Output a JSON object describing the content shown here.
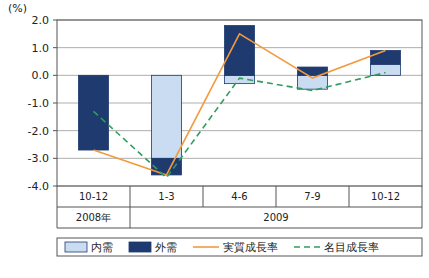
{
  "chart_data": {
    "type": "bar",
    "stacked": true,
    "grid": true,
    "legend": "bottom",
    "y_label": "(%)",
    "categories": [
      "10-12",
      "1-3",
      "4-6",
      "7-9",
      "10-12"
    ],
    "category_groups": [
      {
        "label": "2008年",
        "count": 1
      },
      {
        "label": "2009",
        "count": 4
      }
    ],
    "ylim": [
      -4.0,
      2.0
    ],
    "yticks": [
      {
        "value": 2,
        "label": "2.0"
      },
      {
        "value": 1,
        "label": "1.0"
      },
      {
        "value": 0,
        "label": "0.0"
      },
      {
        "value": -1,
        "label": "-1.0"
      },
      {
        "value": -2,
        "label": "-2.0"
      },
      {
        "value": -3,
        "label": "-3.0"
      },
      {
        "value": -4,
        "label": "-4.0"
      }
    ],
    "series": [
      {
        "name": "内需",
        "type": "bar",
        "color": "#c9dcf2",
        "values": [
          0.0,
          -3.0,
          -0.3,
          -0.5,
          0.4
        ]
      },
      {
        "name": "外需",
        "type": "bar",
        "color": "#1f3a6e",
        "values": [
          -2.7,
          -0.6,
          1.8,
          0.3,
          0.5
        ]
      },
      {
        "name": "実質成長率",
        "type": "line",
        "color": "#f39a3d",
        "line_style": "solid",
        "values": [
          -2.7,
          -3.6,
          1.5,
          -0.1,
          0.9
        ]
      },
      {
        "name": "名目成長率",
        "type": "line",
        "color": "#2e9e5b",
        "line_style": "dashed",
        "values": [
          -1.3,
          -3.7,
          -0.1,
          -0.55,
          0.1
        ]
      }
    ]
  }
}
